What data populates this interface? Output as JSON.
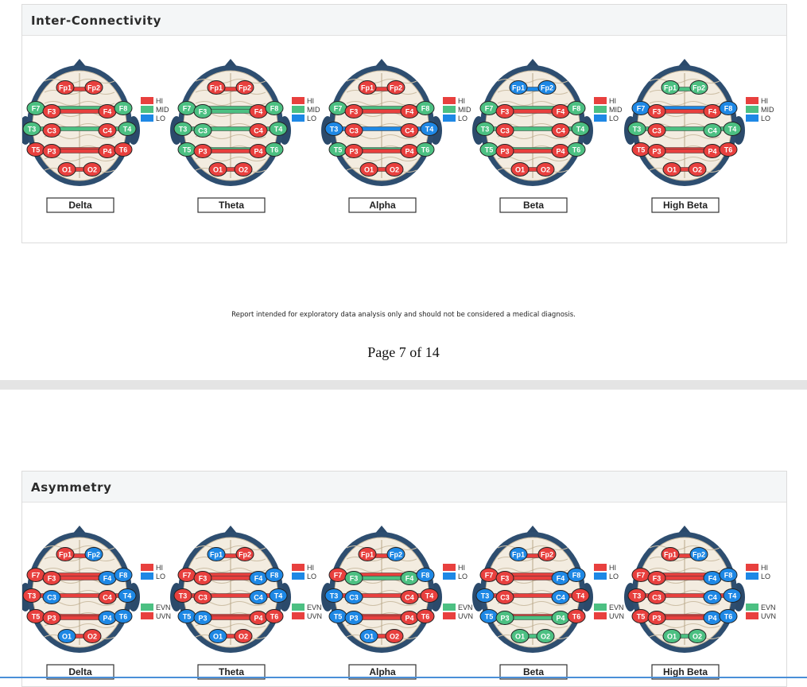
{
  "colors": {
    "hi": "#e8403e",
    "mid": "#4cc082",
    "lo": "#1e88e5",
    "evn": "#4cc082",
    "uvn": "#e8403e"
  },
  "electrodes": [
    "Fp1",
    "Fp2",
    "F7",
    "F3",
    "F4",
    "F8",
    "T3",
    "C3",
    "C4",
    "T4",
    "T5",
    "P3",
    "P4",
    "T6",
    "O1",
    "O2"
  ],
  "sections": [
    {
      "title": "Inter-Connectivity",
      "legend": [
        "HI",
        "MID",
        "LO"
      ],
      "legend_colors": [
        "hi",
        "mid",
        "lo"
      ],
      "heads": [
        {
          "label": "Delta",
          "nodes": {
            "Fp1": "hi",
            "Fp2": "hi",
            "F7": "mid",
            "F3": "hi",
            "F4": "hi",
            "F8": "mid",
            "T3": "mid",
            "C3": "hi",
            "C4": "hi",
            "T4": "mid",
            "T5": "hi",
            "P3": "hi",
            "P4": "hi",
            "T6": "hi",
            "O1": "hi",
            "O2": "hi"
          },
          "lines": [
            "hi",
            "mid",
            "hi",
            "mid",
            "hi",
            "hi",
            "hi"
          ]
        },
        {
          "label": "Theta",
          "nodes": {
            "Fp1": "hi",
            "Fp2": "hi",
            "F7": "mid",
            "F3": "mid",
            "F4": "hi",
            "F8": "mid",
            "T3": "mid",
            "C3": "mid",
            "C4": "hi",
            "T4": "mid",
            "T5": "mid",
            "P3": "hi",
            "P4": "hi",
            "T6": "mid",
            "O1": "hi",
            "O2": "hi"
          },
          "lines": [
            "hi",
            "mid",
            "mid",
            "mid",
            "mid",
            "hi",
            "hi"
          ]
        },
        {
          "label": "Alpha",
          "nodes": {
            "Fp1": "hi",
            "Fp2": "hi",
            "F7": "mid",
            "F3": "hi",
            "F4": "hi",
            "F8": "mid",
            "T3": "lo",
            "C3": "hi",
            "C4": "hi",
            "T4": "lo",
            "T5": "mid",
            "P3": "hi",
            "P4": "hi",
            "T6": "mid",
            "O1": "hi",
            "O2": "hi"
          },
          "lines": [
            "hi",
            "mid",
            "hi",
            "lo",
            "mid",
            "hi",
            "hi"
          ]
        },
        {
          "label": "Beta",
          "nodes": {
            "Fp1": "lo",
            "Fp2": "lo",
            "F7": "mid",
            "F3": "hi",
            "F4": "hi",
            "F8": "mid",
            "T3": "mid",
            "C3": "hi",
            "C4": "hi",
            "T4": "mid",
            "T5": "mid",
            "P3": "hi",
            "P4": "hi",
            "T6": "mid",
            "O1": "hi",
            "O2": "hi"
          },
          "lines": [
            "lo",
            "mid",
            "hi",
            "mid",
            "mid",
            "hi",
            "hi"
          ]
        },
        {
          "label": "High Beta",
          "nodes": {
            "Fp1": "mid",
            "Fp2": "mid",
            "F7": "lo",
            "F3": "hi",
            "F4": "hi",
            "F8": "lo",
            "T3": "mid",
            "C3": "hi",
            "C4": "mid",
            "T4": "mid",
            "T5": "hi",
            "P3": "hi",
            "P4": "hi",
            "T6": "hi",
            "O1": "hi",
            "O2": "hi"
          },
          "lines": [
            "mid",
            "lo",
            "hi",
            "mid",
            "hi",
            "hi",
            "hi"
          ]
        }
      ]
    },
    {
      "title": "Asymmetry",
      "legend": [
        "HI",
        "LO",
        "EVN",
        "UVN"
      ],
      "legend_colors": [
        "hi",
        "lo",
        "evn",
        "uvn"
      ],
      "heads": [
        {
          "label": "Delta",
          "nodes": {
            "Fp1": "hi",
            "Fp2": "lo",
            "F7": "hi",
            "F3": "hi",
            "F4": "lo",
            "F8": "lo",
            "T3": "hi",
            "C3": "lo",
            "C4": "hi",
            "T4": "lo",
            "T5": "hi",
            "P3": "hi",
            "P4": "lo",
            "T6": "lo",
            "O1": "lo",
            "O2": "hi"
          },
          "lines": [
            "uvn",
            "uvn",
            "uvn",
            "uvn",
            "uvn",
            "uvn",
            "uvn"
          ]
        },
        {
          "label": "Theta",
          "nodes": {
            "Fp1": "lo",
            "Fp2": "hi",
            "F7": "hi",
            "F3": "hi",
            "F4": "lo",
            "F8": "lo",
            "T3": "hi",
            "C3": "hi",
            "C4": "lo",
            "T4": "lo",
            "T5": "lo",
            "P3": "lo",
            "P4": "hi",
            "T6": "hi",
            "O1": "lo",
            "O2": "hi"
          },
          "lines": [
            "uvn",
            "uvn",
            "uvn",
            "uvn",
            "uvn",
            "uvn",
            "uvn"
          ]
        },
        {
          "label": "Alpha",
          "nodes": {
            "Fp1": "hi",
            "Fp2": "lo",
            "F7": "hi",
            "F3": "evn",
            "F4": "evn",
            "F8": "lo",
            "T3": "lo",
            "C3": "lo",
            "C4": "hi",
            "T4": "hi",
            "T5": "lo",
            "P3": "lo",
            "P4": "hi",
            "T6": "hi",
            "O1": "lo",
            "O2": "hi"
          },
          "lines": [
            "uvn",
            "uvn",
            "evn",
            "uvn",
            "uvn",
            "uvn",
            "uvn"
          ]
        },
        {
          "label": "Beta",
          "nodes": {
            "Fp1": "lo",
            "Fp2": "hi",
            "F7": "hi",
            "F3": "hi",
            "F4": "lo",
            "F8": "lo",
            "T3": "lo",
            "C3": "hi",
            "C4": "lo",
            "T4": "hi",
            "T5": "lo",
            "P3": "evn",
            "P4": "evn",
            "T6": "hi",
            "O1": "evn",
            "O2": "evn"
          },
          "lines": [
            "uvn",
            "uvn",
            "uvn",
            "uvn",
            "uvn",
            "evn",
            "evn"
          ]
        },
        {
          "label": "High Beta",
          "nodes": {
            "Fp1": "hi",
            "Fp2": "lo",
            "F7": "hi",
            "F3": "hi",
            "F4": "lo",
            "F8": "lo",
            "T3": "hi",
            "C3": "hi",
            "C4": "lo",
            "T4": "lo",
            "T5": "hi",
            "P3": "hi",
            "P4": "lo",
            "T6": "lo",
            "O1": "evn",
            "O2": "evn"
          },
          "lines": [
            "uvn",
            "uvn",
            "uvn",
            "uvn",
            "uvn",
            "uvn",
            "evn"
          ]
        }
      ]
    }
  ],
  "footer": {
    "disclaimer": "Report intended for exploratory data analysis only and should not be considered a medical diagnosis.",
    "page": "Page 7 of 14"
  }
}
